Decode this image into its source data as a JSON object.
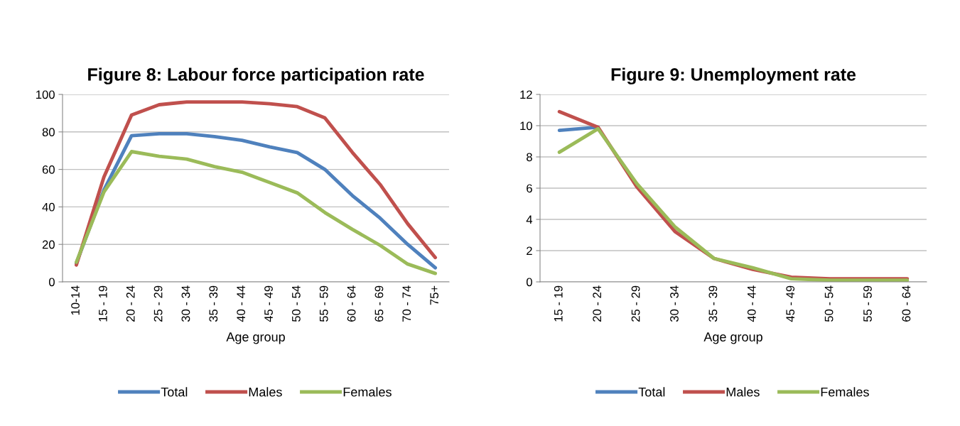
{
  "chart_data": [
    {
      "type": "line",
      "title": "Figure 8: Labour force participation rate",
      "xlabel": "Age group",
      "categories": [
        "10-14",
        "15 - 19",
        "20 - 24",
        "25 - 29",
        "30 - 34",
        "35 - 39",
        "40 - 44",
        "45 - 49",
        "50 - 54",
        "55 - 59",
        "60 - 64",
        "65 - 69",
        "70 - 74",
        "75+"
      ],
      "series": [
        {
          "name": "Total",
          "color": "#4f81bd",
          "values": [
            10,
            49,
            78,
            79,
            79,
            77.5,
            75.5,
            72,
            69,
            60,
            46,
            34,
            20,
            7.5
          ]
        },
        {
          "name": "Males",
          "color": "#c0504d",
          "values": [
            9,
            56,
            89,
            94.5,
            96,
            96,
            96,
            95,
            93.5,
            87.5,
            69,
            52,
            31,
            13
          ]
        },
        {
          "name": "Females",
          "color": "#9bbb59",
          "values": [
            10.5,
            48,
            69.5,
            67,
            65.5,
            61.5,
            58.5,
            53,
            47.5,
            37,
            28,
            19.5,
            9.5,
            4.5
          ]
        }
      ],
      "ylim": [
        0,
        100
      ],
      "yticks": [
        0,
        20,
        40,
        60,
        80,
        100
      ],
      "grid": "y",
      "legend": "bottom",
      "marker": "none",
      "line_style": "solid"
    },
    {
      "type": "line",
      "title": "Figure 9: Unemployment rate",
      "xlabel": "Age group",
      "categories": [
        "15 - 19",
        "20 - 24",
        "25 - 29",
        "30 - 34",
        "35 - 39",
        "40 - 44",
        "45 - 49",
        "50 - 54",
        "55 - 59",
        "60 - 64"
      ],
      "series": [
        {
          "name": "Total",
          "color": "#4f81bd",
          "values": [
            9.7,
            9.9,
            null,
            null,
            null,
            null,
            null,
            null,
            null,
            null
          ]
        },
        {
          "name": "Males",
          "color": "#c0504d",
          "values": [
            10.9,
            9.9,
            6.1,
            3.2,
            1.5,
            0.8,
            0.3,
            0.2,
            0.2,
            0.2
          ]
        },
        {
          "name": "Females",
          "color": "#9bbb59",
          "values": [
            8.3,
            9.8,
            6.3,
            3.5,
            1.5,
            0.9,
            0.2,
            0.1,
            0.1,
            0.1
          ]
        }
      ],
      "ylim": [
        0,
        12
      ],
      "yticks": [
        0,
        2,
        4,
        6,
        8,
        10,
        12
      ],
      "grid": "y",
      "legend": "bottom",
      "marker": "none",
      "line_style": "solid"
    }
  ]
}
